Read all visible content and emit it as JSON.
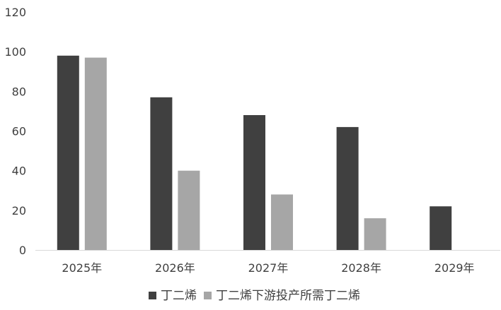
{
  "chart_data": {
    "type": "bar",
    "title": "",
    "xlabel": "",
    "ylabel": "",
    "categories": [
      "2025年",
      "2026年",
      "2027年",
      "2028年",
      "2029年"
    ],
    "series": [
      {
        "name": "丁二烯",
        "color": "#404040",
        "values": [
          98,
          77,
          68,
          62,
          22
        ]
      },
      {
        "name": "丁二烯下游投产所需丁二烯",
        "color": "#a6a6a6",
        "values": [
          97,
          40,
          28,
          16,
          null
        ]
      }
    ],
    "ylim": [
      0,
      120
    ],
    "yticks": [
      0,
      20,
      40,
      60,
      80,
      100,
      120
    ],
    "grid": false,
    "legend_position": "bottom"
  }
}
